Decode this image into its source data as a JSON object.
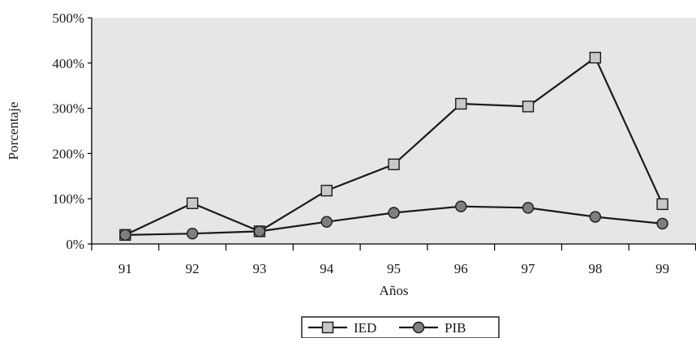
{
  "chart_data": {
    "type": "line",
    "categories": [
      "91",
      "92",
      "93",
      "94",
      "95",
      "96",
      "97",
      "98",
      "99"
    ],
    "series": [
      {
        "name": "IED",
        "marker": "square",
        "values": [
          20,
          90,
          28,
          118,
          176,
          310,
          304,
          412,
          88
        ]
      },
      {
        "name": "PIB",
        "marker": "circle",
        "values": [
          20,
          23,
          28,
          49,
          69,
          83,
          80,
          60,
          45
        ]
      }
    ],
    "ylim": [
      0,
      500
    ],
    "yticks": [
      "0%",
      "100%",
      "200%",
      "300%",
      "400%",
      "500%"
    ],
    "xlabel": "Años",
    "ylabel": "Porcentaje",
    "legend": {
      "placement": "bottom-center",
      "entries": [
        "IED",
        "PIB"
      ]
    },
    "grid": false,
    "colors": {
      "plot_background": "#e6e6e6",
      "line": "#1a1a1a",
      "square_marker_fill": "#c8c8c8",
      "circle_marker_fill": "#7f7f7f"
    }
  }
}
